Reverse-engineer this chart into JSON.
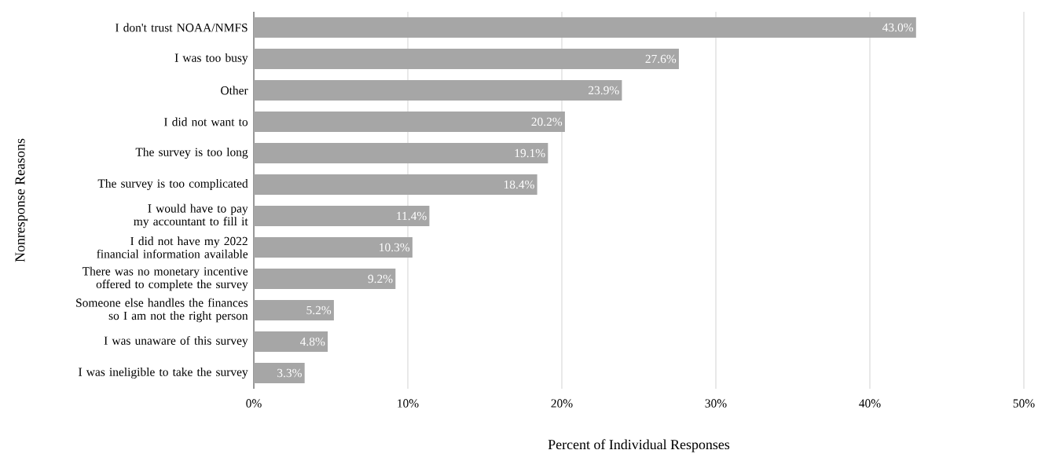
{
  "chart_data": {
    "type": "bar",
    "orientation": "horizontal",
    "xlabel": "Percent of Individual Responses",
    "ylabel": "Nonresponse Reasons",
    "categories": [
      "I don't trust NOAA/NMFS",
      "I was too busy",
      "Other",
      "I did not want to",
      "The survey is too long",
      "The survey is too complicated",
      "I would have to pay my accountant to fill it",
      "I did not have my 2022 financial information available",
      "There was no monetary incentive offered to complete the survey",
      "Someone else handles the finances so I am not the right person",
      "I was unaware of this survey",
      "I was ineligible to take the survey"
    ],
    "values": [
      43.0,
      27.6,
      23.9,
      20.2,
      19.1,
      18.4,
      11.4,
      10.3,
      9.2,
      5.2,
      4.8,
      3.3
    ],
    "value_labels": [
      "43.0%",
      "27.6%",
      "23.9%",
      "20.2%",
      "19.1%",
      "18.4%",
      "11.4%",
      "10.3%",
      "9.2%",
      "5.2%",
      "4.8%",
      "3.3%"
    ],
    "color": "#a6a6a6",
    "xlim": [
      0,
      50
    ],
    "xticks": [
      {
        "value": 0,
        "label": "0%"
      },
      {
        "value": 10,
        "label": "10%"
      },
      {
        "value": 20,
        "label": "20%"
      },
      {
        "value": 30,
        "label": "30%"
      },
      {
        "value": 40,
        "label": "40%"
      },
      {
        "value": 50,
        "label": "50%"
      }
    ],
    "grid": "x"
  }
}
